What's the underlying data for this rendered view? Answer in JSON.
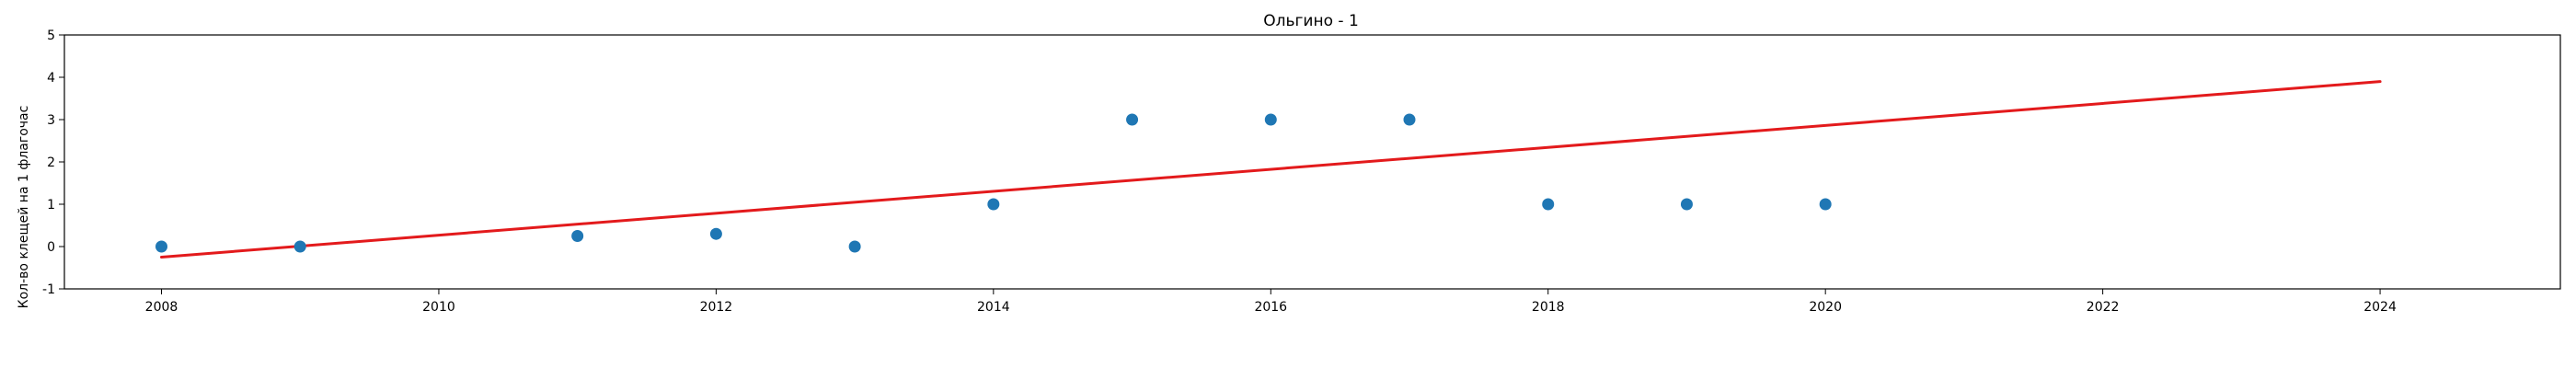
{
  "chart_data": {
    "type": "scatter",
    "title": "Ольгино - 1",
    "xlabel": "",
    "ylabel": "Кол-во клещей на 1 флагочас",
    "xlim": [
      2007.3,
      2025.3
    ],
    "ylim": [
      -1,
      5
    ],
    "xticks": [
      2008,
      2010,
      2012,
      2014,
      2016,
      2018,
      2020,
      2022,
      2024
    ],
    "yticks": [
      -1,
      0,
      1,
      2,
      3,
      4,
      5
    ],
    "grid": false,
    "points": {
      "x": [
        2008,
        2009,
        2011,
        2012,
        2013,
        2014,
        2015,
        2016,
        2017,
        2018,
        2019,
        2020
      ],
      "y": [
        0,
        0,
        0.25,
        0.3,
        0,
        1,
        3,
        3,
        3,
        1,
        1,
        1
      ],
      "color": "#1f77b4"
    },
    "trendline": {
      "x": [
        2008,
        2024
      ],
      "y": [
        -0.25,
        3.9
      ],
      "color": "#e31a1c"
    }
  }
}
